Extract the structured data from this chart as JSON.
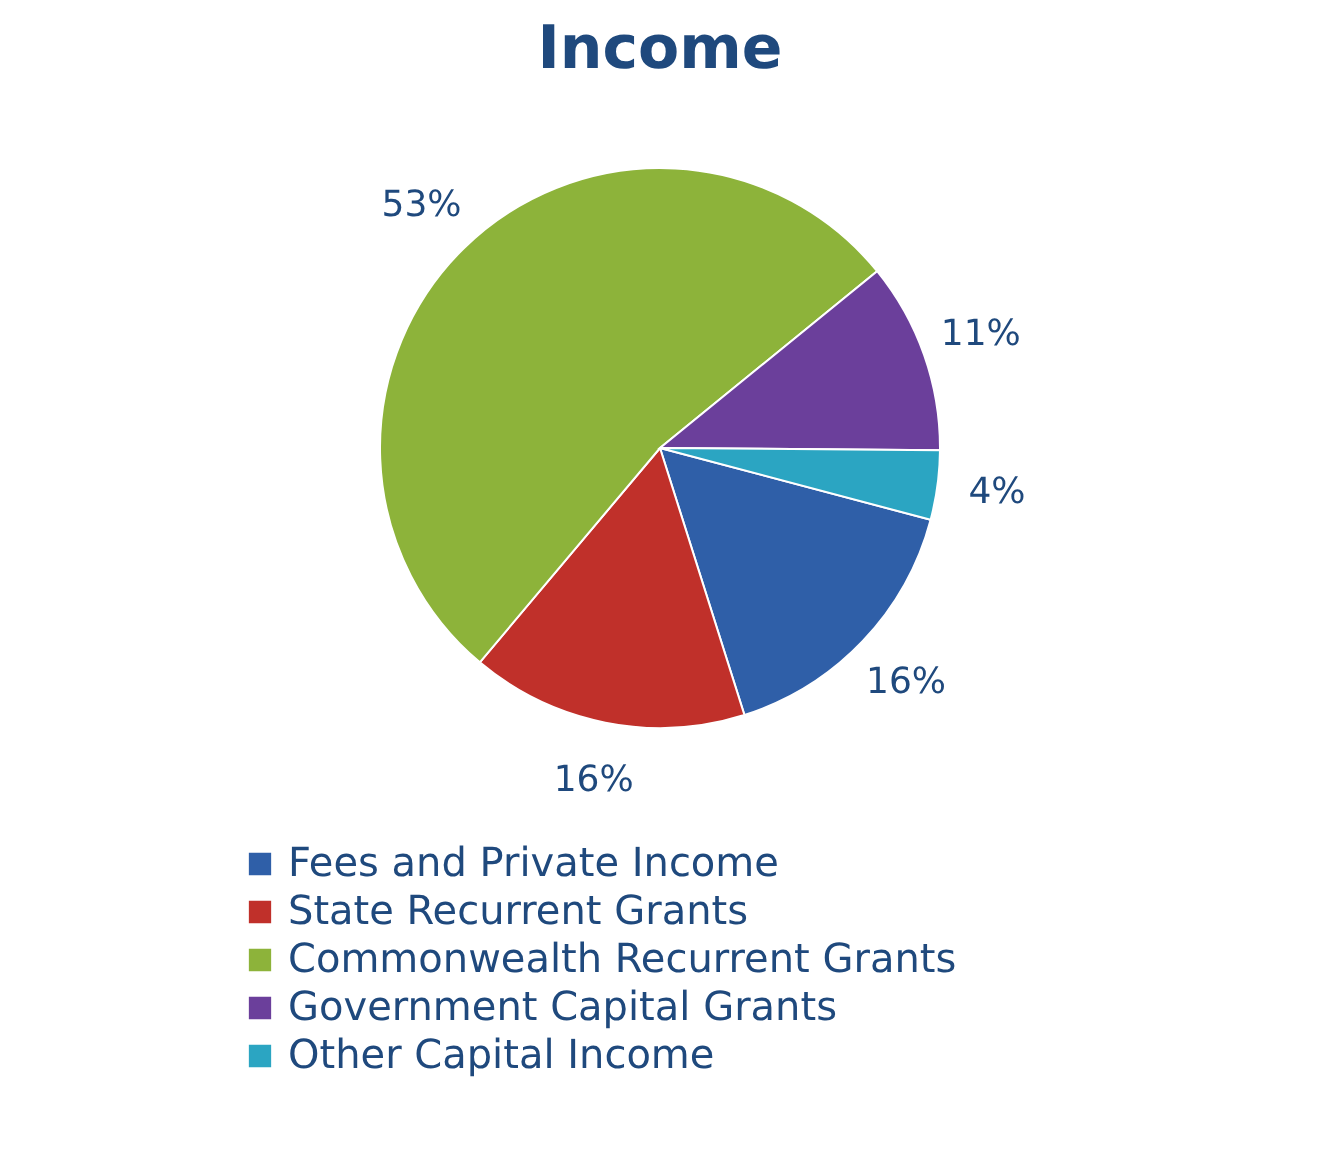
{
  "chart_data": {
    "type": "pie",
    "title": "Income",
    "categories": [
      "Fees and Private Income",
      "State Recurrent Grants",
      "Commonwealth Recurrent Grants",
      "Government Capital Grants",
      "Other Capital Income"
    ],
    "values": [
      16,
      16,
      53,
      11,
      4
    ],
    "colors": [
      "#2f5fa8",
      "#c0302a",
      "#8db33a",
      "#6b3f9b",
      "#2ba5c2"
    ],
    "value_labels": [
      "16%",
      "16%",
      "53%",
      "11%",
      "4%"
    ],
    "legend": "bottom"
  }
}
